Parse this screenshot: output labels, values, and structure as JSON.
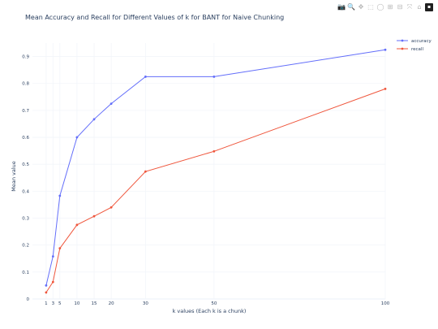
{
  "toolbar": {
    "icons": [
      "camera-icon",
      "zoom-icon",
      "pan-icon",
      "box-select-icon",
      "lasso-select-icon",
      "zoom-in-icon",
      "zoom-out-icon",
      "autoscale-icon",
      "reset-axes-icon",
      "plotly-logo-icon"
    ],
    "glyphs": [
      "📷",
      "🔍",
      "✥",
      "⬚",
      "◯",
      "⊞",
      "⊟",
      "⤧",
      "⌂",
      "▪"
    ]
  },
  "chart_data": {
    "type": "line",
    "title": "Mean Accuracy and Recall for Different Values of k for BANT for Naive Chunking",
    "xlabel": "k values (Each k is a chunk)",
    "ylabel": "Mean value",
    "x": [
      1,
      3,
      5,
      10,
      15,
      20,
      30,
      50,
      100
    ],
    "x_ticks": [
      "1",
      "3",
      "5",
      "10",
      "15",
      "20",
      "30",
      "50",
      "100"
    ],
    "y_ticks": [
      "0",
      "0.1",
      "0.2",
      "0.3",
      "0.4",
      "0.5",
      "0.6",
      "0.7",
      "0.8",
      "0.9"
    ],
    "xlim": [
      -3,
      100
    ],
    "ylim": [
      0,
      0.95
    ],
    "grid": true,
    "legend_position": "top-right",
    "series": [
      {
        "name": "accuracy",
        "color": "#636efa",
        "values": [
          0.05,
          0.158,
          0.383,
          0.6,
          0.667,
          0.725,
          0.825,
          0.825,
          0.925
        ]
      },
      {
        "name": "recall",
        "color": "#ef553b",
        "values": [
          0.024,
          0.063,
          0.188,
          0.275,
          0.307,
          0.34,
          0.473,
          0.548,
          0.78
        ]
      }
    ]
  }
}
